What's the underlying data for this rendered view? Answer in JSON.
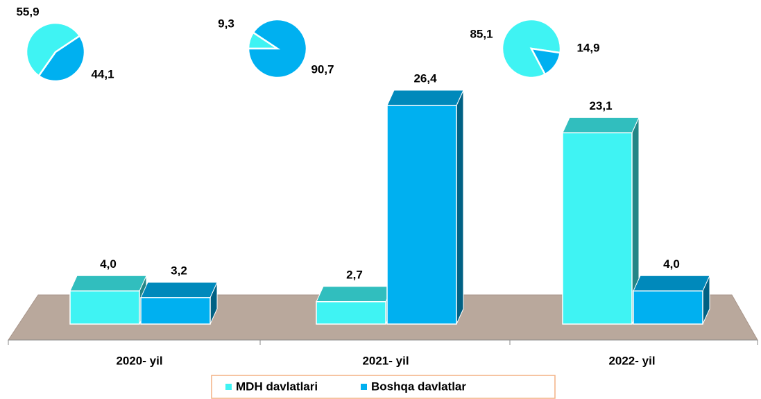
{
  "chart_data": [
    {
      "type": "bar",
      "categories": [
        "2020- yil",
        "2021- yil",
        "2022- yil"
      ],
      "series": [
        {
          "name": "MDH davlatlari",
          "color": "#3ff3f3",
          "values": [
            4.0,
            2.7,
            23.1
          ],
          "value_labels": [
            "4,0",
            "2,7",
            "23,1"
          ]
        },
        {
          "name": "Boshqa davlatlar",
          "color": "#00b0f0",
          "values": [
            3.2,
            26.4,
            4.0
          ],
          "value_labels": [
            "3,2",
            "26,4",
            "4,0"
          ]
        }
      ],
      "legend": "bottom"
    },
    {
      "type": "pie",
      "values": [
        55.9,
        44.1
      ],
      "value_labels": [
        "55,9",
        "44,1"
      ],
      "colors": [
        "#3ff3f3",
        "#00b0f0"
      ]
    },
    {
      "type": "pie",
      "values": [
        9.3,
        90.7
      ],
      "value_labels": [
        "9,3",
        "90,7"
      ],
      "colors": [
        "#3ff3f3",
        "#00b0f0"
      ]
    },
    {
      "type": "pie",
      "values": [
        85.1,
        14.9
      ],
      "value_labels": [
        "85,1",
        "14,9"
      ],
      "colors": [
        "#3ff3f3",
        "#00b0f0"
      ]
    }
  ]
}
